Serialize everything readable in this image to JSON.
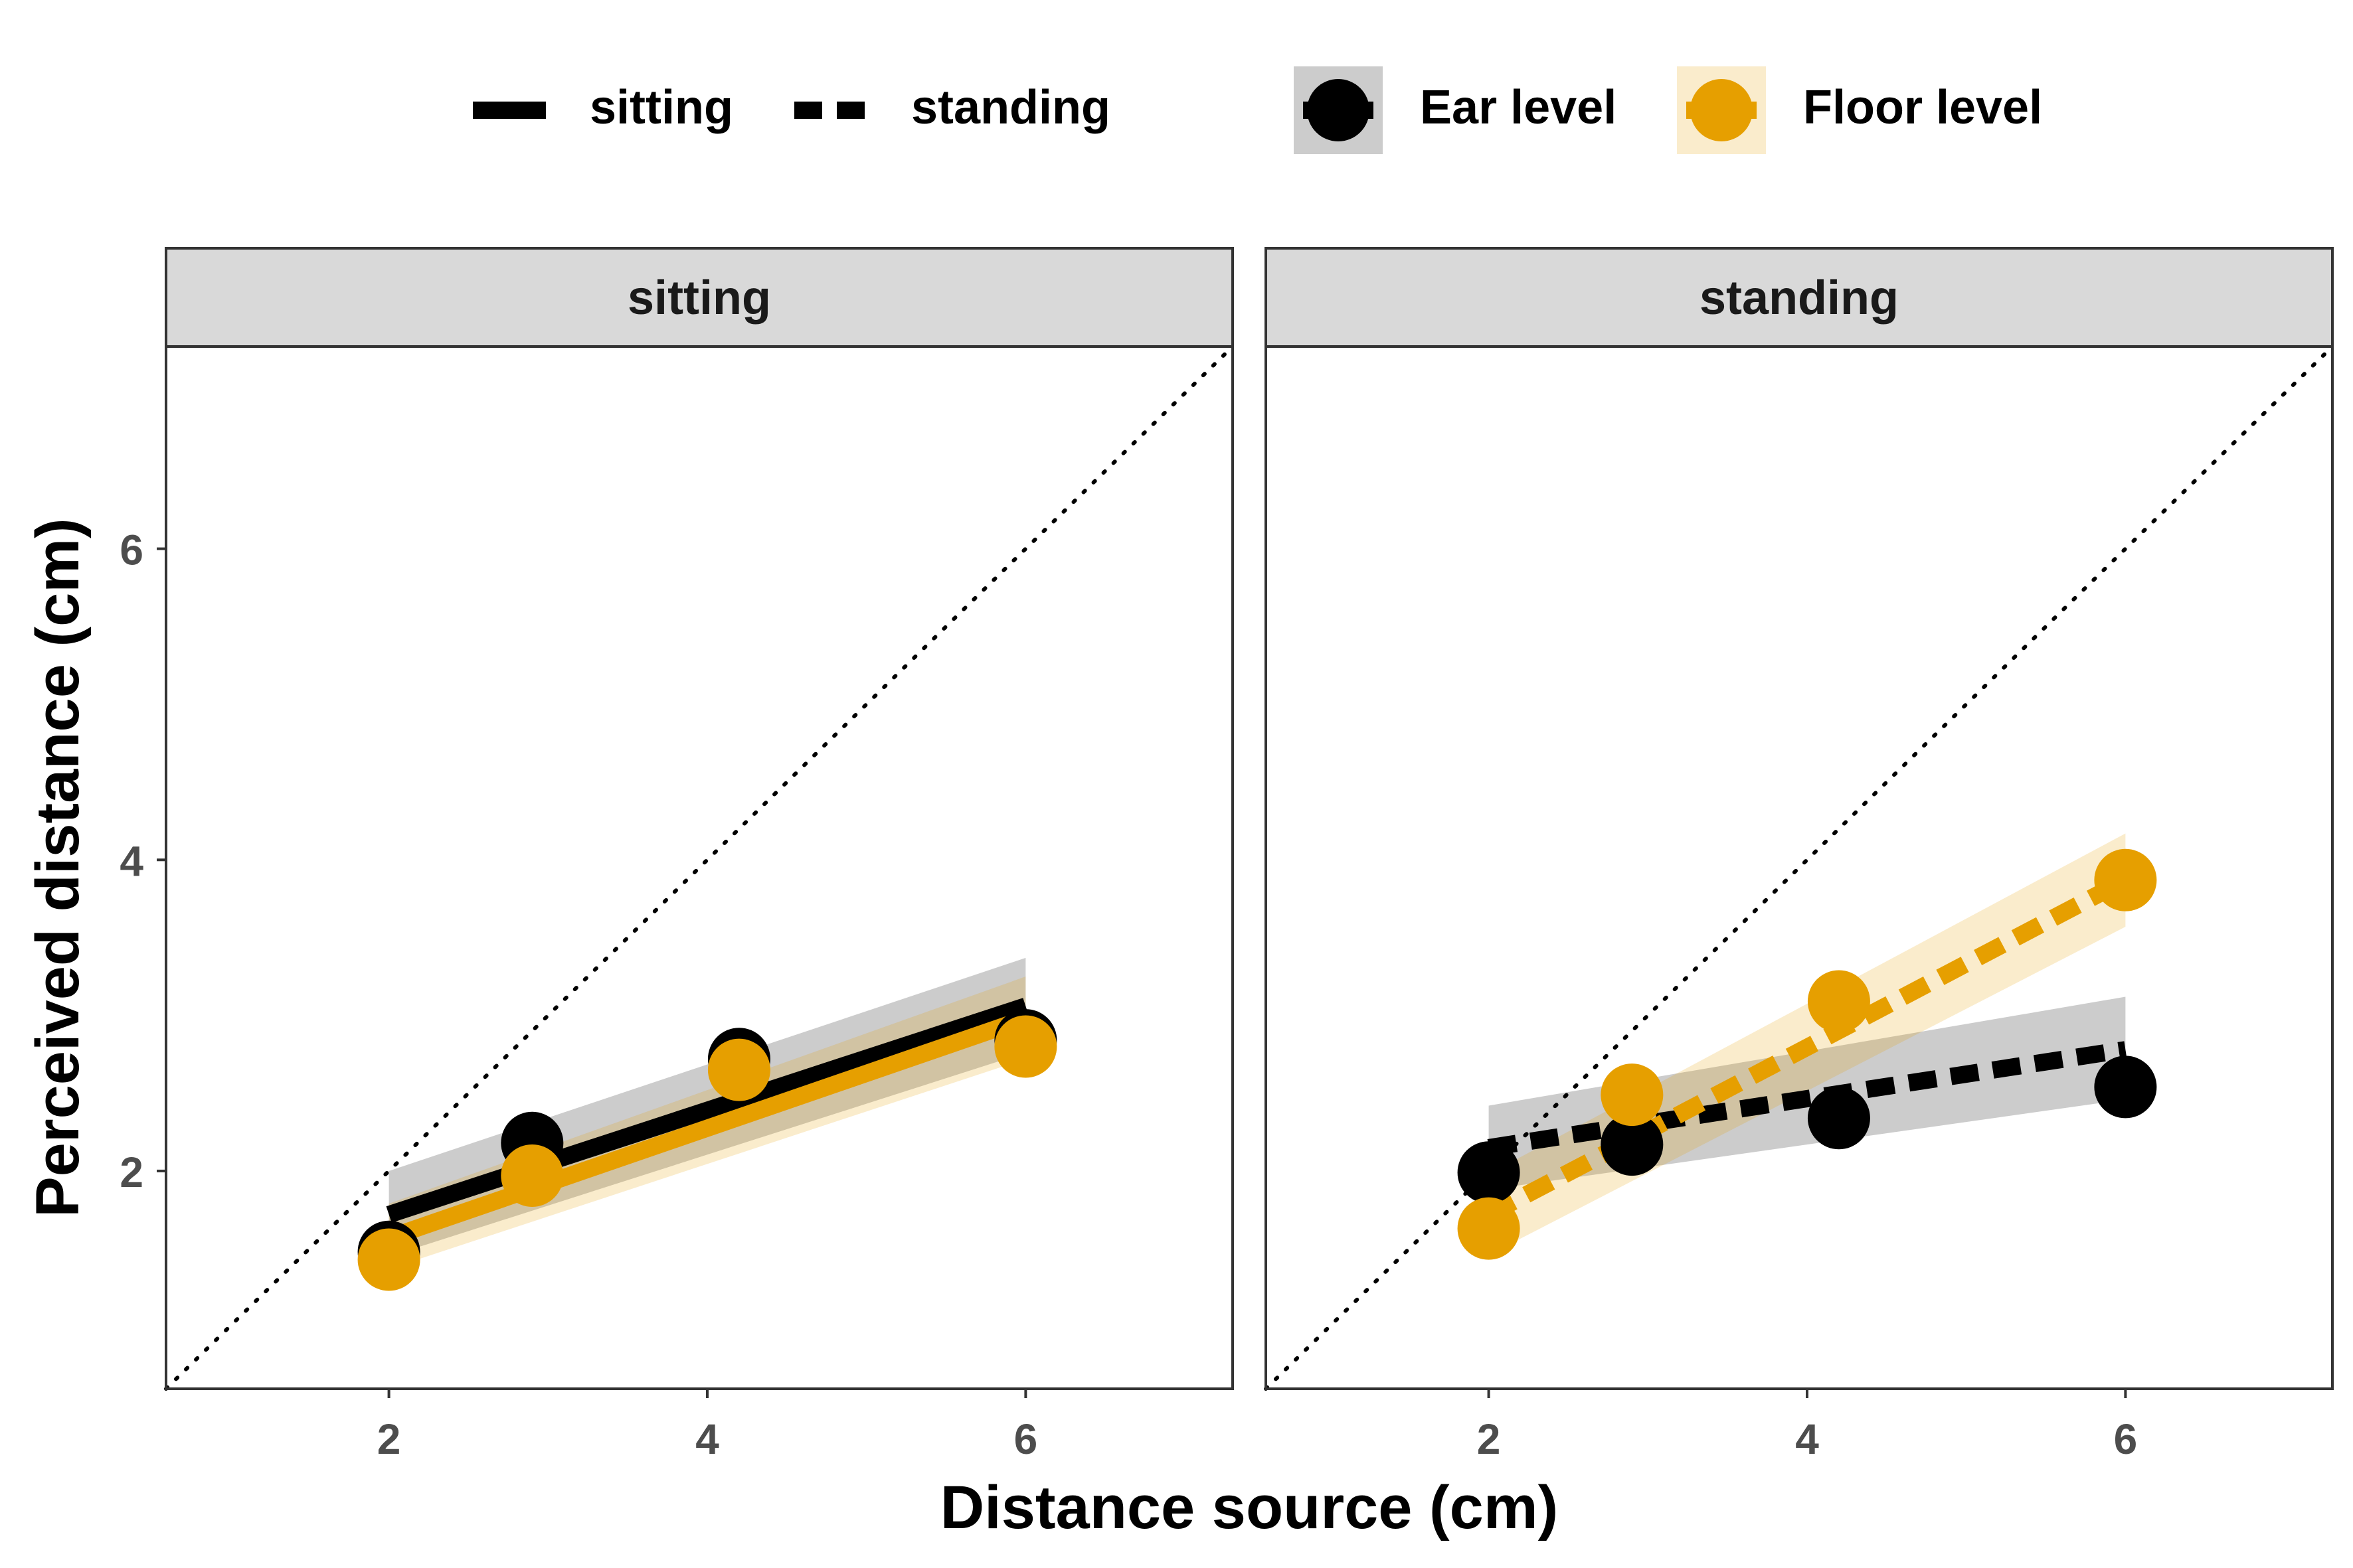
{
  "chart_data": {
    "type": "line",
    "xlabel": "Distance source (cm)",
    "ylabel": "Perceived distance (cm)",
    "xlim": [
      0.6,
      7.3
    ],
    "ylim": [
      0.6,
      7.3
    ],
    "xticks": [
      2,
      4,
      6
    ],
    "yticks": [
      2,
      4,
      6
    ],
    "grid": false,
    "reference_line": {
      "type": "identity",
      "style": "dotted"
    },
    "legend": {
      "placement": "top",
      "linetype_entries": [
        {
          "label": "sitting",
          "dash": "solid"
        },
        {
          "label": "standing",
          "dash": "dashed"
        }
      ],
      "color_entries": [
        {
          "label": "Ear level",
          "color": "#000000"
        },
        {
          "label": "Floor level",
          "color": "#E69F00"
        }
      ]
    },
    "colors": {
      "ear": "#000000",
      "floor": "#E69F00",
      "strip": "#D9D9D9"
    },
    "panels": [
      {
        "title": "sitting",
        "linetype": "solid",
        "series": [
          {
            "name": "Ear level",
            "color": "#000000",
            "x": [
              2.0,
              2.9,
              4.2,
              6.0
            ],
            "y": [
              1.48,
              2.18,
              2.72,
              2.84
            ],
            "fit": {
              "x": [
                2.0,
                6.0
              ],
              "y": [
                1.72,
                3.06
              ]
            },
            "band": {
              "x": [
                2.0,
                6.0
              ],
              "lower": [
                1.45,
                2.76
              ],
              "upper": [
                2.0,
                3.37
              ]
            }
          },
          {
            "name": "Floor level",
            "color": "#E69F00",
            "x": [
              2.0,
              2.9,
              4.2,
              6.0
            ],
            "y": [
              1.43,
              1.97,
              2.65,
              2.8
            ],
            "fit": {
              "x": [
                2.0,
                6.0
              ],
              "y": [
                1.57,
                2.98
              ]
            },
            "band": {
              "x": [
                2.0,
                6.0
              ],
              "lower": [
                1.37,
                2.72
              ],
              "upper": [
                1.79,
                3.25
              ]
            }
          }
        ]
      },
      {
        "title": "standing",
        "linetype": "dashed",
        "series": [
          {
            "name": "Ear level",
            "color": "#000000",
            "x": [
              2.0,
              2.9,
              4.2,
              6.0
            ],
            "y": [
              1.99,
              2.17,
              2.34,
              2.54
            ],
            "fit": {
              "x": [
                2.0,
                6.0
              ],
              "y": [
                2.15,
                2.78
              ]
            },
            "band": {
              "x": [
                2.0,
                6.0
              ],
              "lower": [
                1.88,
                2.46
              ],
              "upper": [
                2.42,
                3.12
              ]
            }
          },
          {
            "name": "Floor level",
            "color": "#E69F00",
            "x": [
              2.0,
              2.9,
              4.2,
              6.0
            ],
            "y": [
              1.63,
              2.49,
              3.09,
              3.87
            ],
            "fit": {
              "x": [
                2.0,
                6.0
              ],
              "y": [
                1.72,
                3.87
              ]
            },
            "band": {
              "x": [
                2.0,
                6.0
              ],
              "lower": [
                1.46,
                3.57
              ],
              "upper": [
                1.98,
                4.17
              ]
            }
          }
        ]
      }
    ]
  }
}
